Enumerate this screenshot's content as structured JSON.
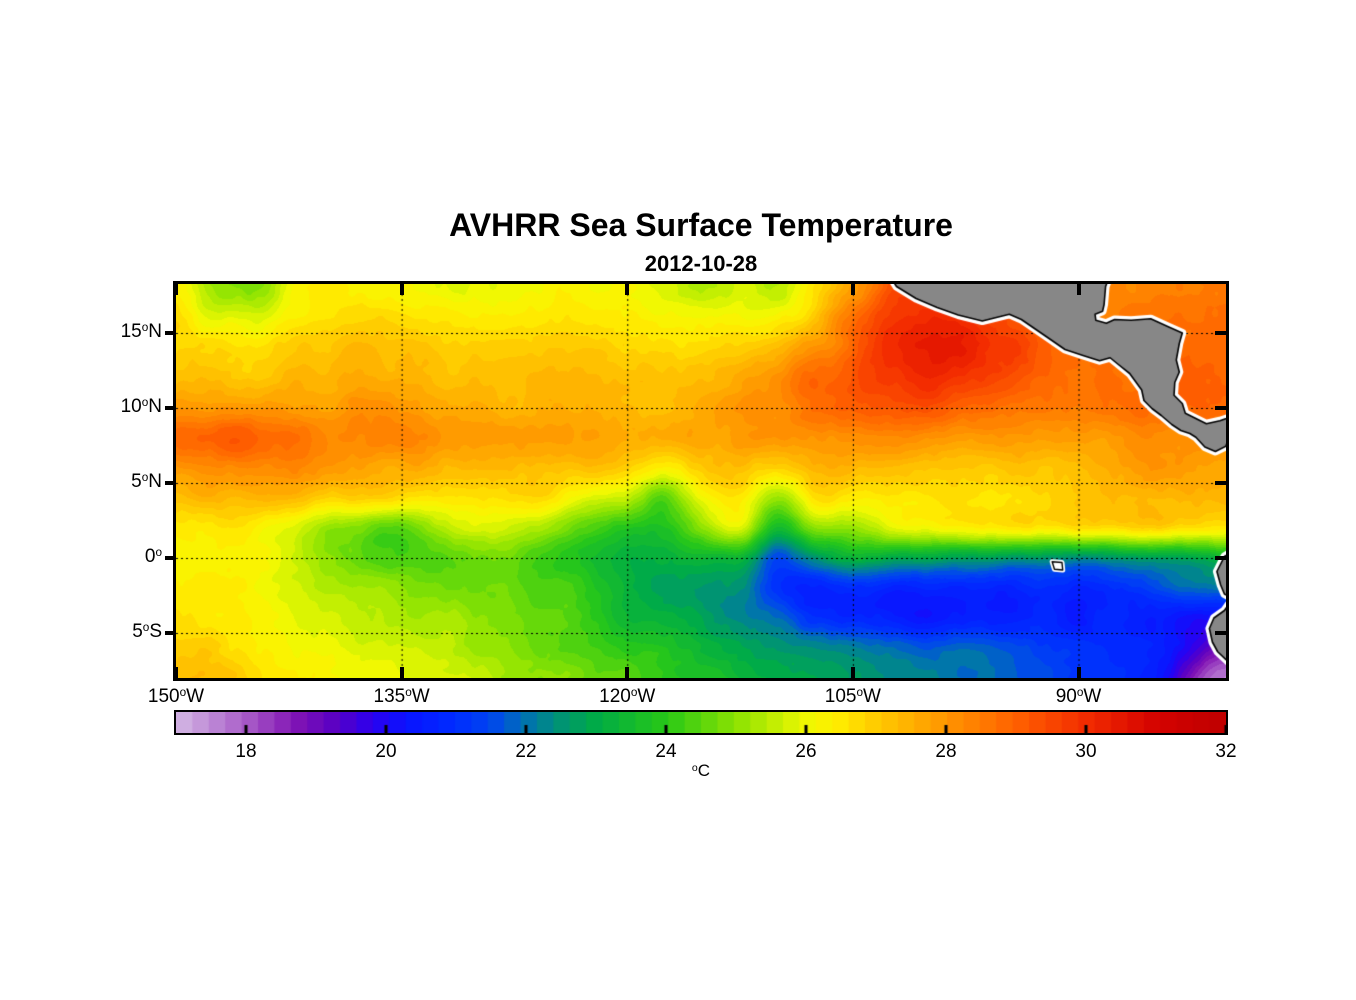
{
  "title": "AVHRR Sea Surface Temperature",
  "subtitle": "2012-10-28",
  "chart_data": {
    "type": "heatmap",
    "title": "AVHRR Sea Surface Temperature",
    "subtitle": "2012-10-28",
    "extent": {
      "lon_min": -150,
      "lon_max": -80.19,
      "lat_min": -8.0,
      "lat_max": 18.27
    },
    "x_ticks": [
      {
        "value": -150,
        "label": "150°W"
      },
      {
        "value": -135,
        "label": "135°W"
      },
      {
        "value": -120,
        "label": "120°W"
      },
      {
        "value": -105,
        "label": "105°W"
      },
      {
        "value": -90,
        "label": "90°W"
      }
    ],
    "y_ticks": [
      {
        "value": 15,
        "label": "15°N"
      },
      {
        "value": 10,
        "label": "10°N"
      },
      {
        "value": 5,
        "label": "5°N"
      },
      {
        "value": 0,
        "label": "0°"
      },
      {
        "value": -5,
        "label": "5°S"
      }
    ],
    "grid_lons": [
      -135,
      -120,
      -105,
      -90
    ],
    "grid_lats": [
      15,
      10,
      5,
      0,
      -5
    ],
    "colorbar": {
      "ticks": [
        18,
        20,
        22,
        24,
        26,
        28,
        30,
        32
      ],
      "unit": "°C",
      "range": [
        17,
        32
      ],
      "levels": 64
    },
    "colormap_stops": [
      [
        17,
        213,
        186,
        229
      ],
      [
        18,
        168,
        92,
        200
      ],
      [
        18.7,
        130,
        20,
        180
      ],
      [
        19.3,
        88,
        0,
        196
      ],
      [
        19.8,
        44,
        0,
        240
      ],
      [
        20.3,
        10,
        20,
        255
      ],
      [
        21,
        0,
        45,
        255
      ],
      [
        21.5,
        0,
        70,
        240
      ],
      [
        22,
        0,
        115,
        175
      ],
      [
        22.5,
        0,
        148,
        115
      ],
      [
        23,
        0,
        172,
        70
      ],
      [
        24,
        40,
        200,
        24
      ],
      [
        25,
        140,
        227,
        2
      ],
      [
        26,
        240,
        248,
        2
      ],
      [
        26.4,
        255,
        240,
        0
      ],
      [
        27,
        255,
        203,
        0
      ],
      [
        28,
        255,
        150,
        0
      ],
      [
        29,
        255,
        97,
        0
      ],
      [
        30,
        243,
        44,
        0
      ],
      [
        31,
        213,
        3,
        0
      ],
      [
        32,
        191,
        0,
        0
      ]
    ],
    "grid": {
      "lon_start": -150,
      "lon_step": 2.5,
      "lat_start": 18,
      "lat_step": -2,
      "values": [
        [
          26.3,
          25.0,
          24.9,
          25.9,
          26.3,
          26.4,
          26.3,
          26.1,
          25.9,
          26.2,
          26.3,
          26.2,
          26.0,
          25.7,
          25.4,
          25.7,
          25.5,
          26.6,
          27.8,
          29.2,
          29.4,
          29.5,
          29.3,
          29.0,
          28.6,
          28.4,
          28.5,
          28.6,
          28.7
        ],
        [
          26.6,
          26.0,
          25.8,
          26.4,
          26.7,
          26.8,
          26.7,
          26.5,
          26.4,
          26.5,
          26.6,
          26.5,
          26.4,
          26.2,
          26.1,
          26.3,
          26.2,
          27.2,
          28.6,
          29.8,
          30.0,
          30.1,
          29.6,
          29.0,
          28.6,
          28.4,
          28.6,
          28.8,
          28.8
        ],
        [
          27.0,
          26.8,
          26.6,
          27.0,
          27.2,
          27.3,
          27.2,
          27.0,
          26.9,
          27.0,
          27.1,
          27.0,
          26.9,
          26.8,
          26.8,
          27.0,
          27.4,
          28.0,
          29.0,
          30.0,
          30.4,
          30.4,
          29.8,
          29.2,
          28.8,
          28.5,
          28.6,
          28.8,
          28.9
        ],
        [
          27.3,
          27.2,
          27.0,
          27.3,
          27.5,
          27.6,
          27.5,
          27.3,
          27.2,
          27.3,
          27.4,
          27.3,
          27.2,
          27.1,
          27.2,
          27.6,
          28.2,
          28.8,
          29.3,
          29.8,
          30.0,
          29.9,
          29.5,
          29.0,
          28.8,
          28.7,
          28.9,
          29.0,
          29.0
        ],
        [
          28.1,
          28.0,
          27.9,
          28.0,
          27.9,
          28.0,
          27.9,
          27.7,
          27.6,
          27.5,
          27.6,
          27.5,
          27.4,
          27.3,
          27.5,
          27.9,
          28.2,
          28.6,
          29.0,
          29.3,
          29.2,
          29.0,
          28.8,
          28.6,
          28.5,
          28.6,
          28.8,
          28.9,
          28.9
        ],
        [
          28.9,
          29.1,
          29.1,
          28.7,
          28.3,
          28.2,
          28.2,
          28.1,
          28.0,
          28.0,
          27.9,
          27.8,
          27.6,
          27.5,
          27.6,
          27.8,
          27.9,
          28.1,
          28.2,
          28.2,
          28.1,
          27.9,
          27.8,
          27.7,
          27.8,
          28.0,
          28.2,
          28.2,
          28.0
        ],
        [
          28.1,
          28.2,
          28.3,
          28.2,
          27.9,
          27.7,
          27.6,
          27.5,
          27.4,
          27.4,
          27.3,
          27.1,
          27.0,
          26.3,
          27.1,
          27.4,
          26.7,
          27.4,
          27.4,
          27.4,
          27.3,
          27.2,
          27.1,
          27.2,
          27.4,
          27.7,
          28.1,
          27.9,
          27.6
        ],
        [
          27.2,
          27.4,
          27.5,
          27.3,
          27.0,
          26.8,
          26.7,
          26.6,
          26.6,
          26.7,
          26.6,
          25.9,
          25.6,
          24.6,
          26.0,
          26.6,
          25.0,
          26.6,
          26.3,
          26.6,
          26.6,
          26.6,
          26.6,
          26.8,
          27.0,
          27.3,
          27.5,
          27.4,
          27.2
        ],
        [
          26.4,
          26.5,
          26.4,
          26.0,
          25.2,
          24.7,
          24.6,
          25.2,
          25.8,
          25.7,
          25.2,
          24.4,
          23.8,
          23.8,
          25.0,
          25.6,
          23.4,
          25.0,
          25.2,
          25.8,
          26.2,
          26.3,
          26.4,
          26.5,
          26.6,
          26.8,
          27.0,
          26.5,
          26.3
        ],
        [
          26.3,
          26.4,
          26.2,
          25.8,
          25.0,
          24.4,
          24.3,
          24.5,
          24.8,
          24.6,
          24.1,
          23.7,
          23.3,
          23.2,
          23.4,
          23.3,
          21.6,
          22.4,
          23.2,
          23.0,
          22.8,
          22.8,
          22.6,
          22.6,
          22.4,
          22.6,
          22.8,
          23.0,
          23.3
        ],
        [
          26.5,
          26.4,
          26.2,
          25.9,
          25.5,
          25.2,
          25.0,
          24.9,
          24.8,
          24.7,
          24.4,
          24.0,
          23.3,
          22.8,
          22.6,
          22.3,
          21.0,
          20.8,
          20.8,
          20.6,
          20.6,
          20.8,
          20.6,
          21.0,
          20.8,
          21.0,
          21.4,
          21.9,
          21.9
        ],
        [
          26.6,
          26.5,
          26.3,
          26.0,
          25.6,
          25.4,
          25.3,
          25.2,
          25.0,
          24.8,
          24.5,
          24.1,
          23.5,
          23.1,
          22.8,
          22.4,
          21.8,
          21.2,
          20.8,
          20.6,
          20.4,
          20.6,
          20.4,
          20.8,
          20.6,
          20.8,
          20.6,
          20.2,
          20.0
        ],
        [
          27.0,
          26.8,
          26.4,
          26.2,
          25.9,
          25.7,
          25.6,
          25.4,
          25.2,
          25.0,
          24.7,
          24.4,
          24.0,
          23.7,
          23.4,
          23.0,
          22.6,
          22.4,
          22.2,
          22.0,
          21.8,
          21.8,
          21.6,
          21.4,
          21.2,
          21.0,
          20.6,
          19.8,
          18.6
        ],
        [
          27.4,
          27.2,
          26.8,
          26.5,
          26.2,
          26.0,
          25.9,
          25.7,
          25.5,
          25.3,
          25.0,
          24.7,
          24.4,
          24.1,
          23.8,
          23.4,
          23.0,
          22.8,
          22.6,
          22.4,
          22.2,
          22.0,
          21.8,
          21.6,
          21.2,
          21.2,
          20.6,
          18.8,
          17.4
        ]
      ]
    },
    "land": {
      "fill": "#878787",
      "coast_color": "#000000",
      "nodata_fringe": "#ffffff",
      "polygons": {
        "central_america": [
          [
            -103.0,
            19.5
          ],
          [
            -102.1,
            18.1
          ],
          [
            -100.8,
            17.3
          ],
          [
            -99.4,
            16.7
          ],
          [
            -98.0,
            16.2
          ],
          [
            -96.4,
            15.8
          ],
          [
            -95.4,
            16.05
          ],
          [
            -94.6,
            16.25
          ],
          [
            -93.8,
            15.9
          ],
          [
            -92.2,
            14.8
          ],
          [
            -90.9,
            13.9
          ],
          [
            -89.7,
            13.5
          ],
          [
            -88.6,
            13.15
          ],
          [
            -87.9,
            13.35
          ],
          [
            -87.35,
            12.9
          ],
          [
            -86.6,
            12.3
          ],
          [
            -85.8,
            11.2
          ],
          [
            -85.65,
            10.5
          ],
          [
            -85.1,
            9.95
          ],
          [
            -84.5,
            9.5
          ],
          [
            -83.8,
            8.9
          ],
          [
            -83.2,
            8.5
          ],
          [
            -82.6,
            8.3
          ],
          [
            -82.2,
            8.05
          ],
          [
            -81.6,
            7.4
          ],
          [
            -80.9,
            7.1
          ],
          [
            -80.2,
            7.45
          ],
          [
            -80.0,
            8.2
          ],
          [
            -79.5,
            8.8
          ],
          [
            -79.3,
            9.6
          ],
          [
            -80.6,
            9.15
          ],
          [
            -81.5,
            8.95
          ],
          [
            -82.3,
            9.35
          ],
          [
            -82.9,
            9.65
          ],
          [
            -83.1,
            10.3
          ],
          [
            -83.65,
            10.85
          ],
          [
            -83.6,
            11.7
          ],
          [
            -83.3,
            12.4
          ],
          [
            -83.5,
            13.2
          ],
          [
            -83.3,
            14.3
          ],
          [
            -83.1,
            15.0
          ],
          [
            -84.0,
            15.4
          ],
          [
            -85.2,
            15.95
          ],
          [
            -86.5,
            15.85
          ],
          [
            -87.6,
            15.9
          ],
          [
            -88.15,
            15.65
          ],
          [
            -88.85,
            15.85
          ],
          [
            -88.9,
            16.25
          ],
          [
            -88.4,
            16.45
          ],
          [
            -88.3,
            16.9
          ],
          [
            -88.2,
            18.1
          ],
          [
            -87.85,
            19.0
          ],
          [
            -95.0,
            19.5
          ]
        ],
        "south_america": [
          [
            -78.5,
            1.2
          ],
          [
            -80.3,
            0.1
          ],
          [
            -80.8,
            -0.9
          ],
          [
            -80.55,
            -1.8
          ],
          [
            -80.3,
            -2.4
          ],
          [
            -79.75,
            -2.7
          ],
          [
            -80.3,
            -3.5
          ],
          [
            -81.0,
            -4.0
          ],
          [
            -81.3,
            -4.7
          ],
          [
            -81.1,
            -5.6
          ],
          [
            -80.75,
            -6.25
          ],
          [
            -79.9,
            -7.05
          ],
          [
            -79.0,
            -7.9
          ],
          [
            -78.0,
            -5.0
          ]
        ],
        "galapagos": [
          [
            -91.75,
            -0.25
          ],
          [
            -91.1,
            -0.3
          ],
          [
            -91.05,
            -0.8
          ],
          [
            -91.6,
            -0.75
          ]
        ]
      }
    }
  }
}
